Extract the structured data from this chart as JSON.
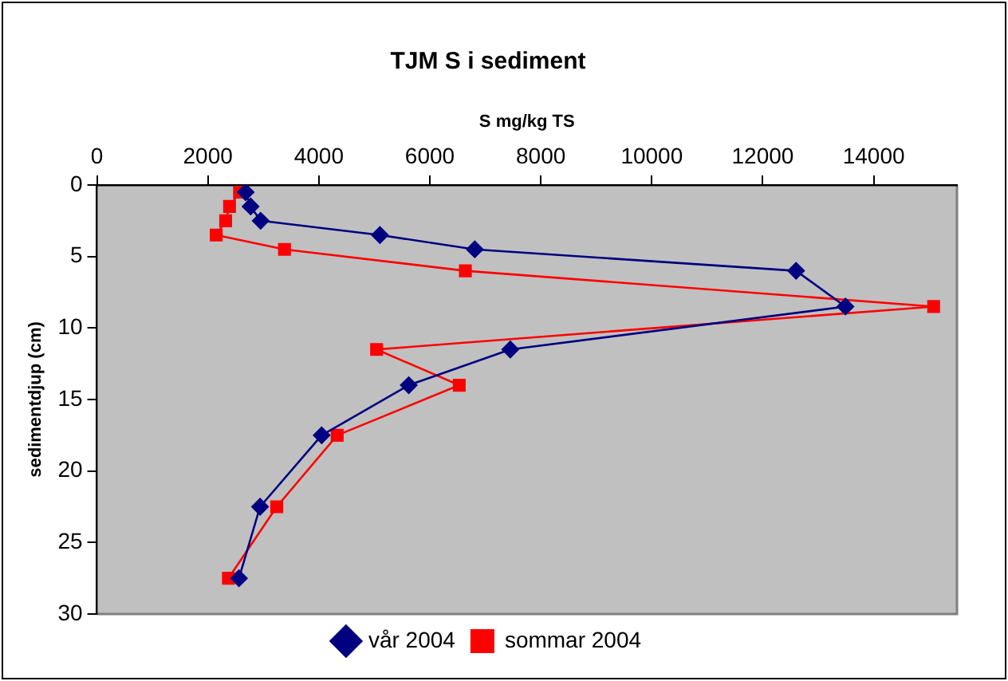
{
  "chart_data": {
    "type": "line",
    "title": "TJM S i sediment",
    "xlabel": "S mg/kg TS",
    "ylabel": "sedimentdjup (cm)",
    "xlim": [
      0,
      15500
    ],
    "xticks": [
      0,
      2000,
      4000,
      6000,
      8000,
      10000,
      12000,
      14000
    ],
    "ylim": [
      30,
      0
    ],
    "yticks": [
      0,
      5,
      10,
      15,
      20,
      25,
      30
    ],
    "grid": false,
    "legend": "bottom",
    "series": [
      {
        "name": "vår 2004",
        "color": "#000080",
        "marker": "diamond",
        "x": [
          2680,
          2770,
          2950,
          5100,
          6810,
          12600,
          13490,
          7450,
          5620,
          4050,
          2940,
          2560
        ],
        "values": [
          0.5,
          1.5,
          2.5,
          3.5,
          4.5,
          6,
          8.5,
          11.5,
          14,
          17.5,
          22.5,
          27.5
        ]
      },
      {
        "name": "sommar 2004",
        "color": "#ff0000",
        "marker": "square",
        "x": [
          2570,
          2390,
          2320,
          2150,
          3380,
          6640,
          15080,
          5040,
          6530,
          4330,
          3240,
          2370
        ],
        "values": [
          0.5,
          1.5,
          2.5,
          3.5,
          4.5,
          6,
          8.5,
          11.5,
          14,
          17.5,
          22.5,
          27.5
        ]
      }
    ]
  }
}
